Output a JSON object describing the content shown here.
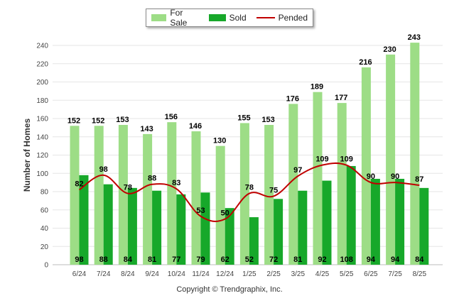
{
  "chart_data": {
    "type": "bar",
    "categories": [
      "6/24",
      "7/24",
      "8/24",
      "9/24",
      "10/24",
      "11/24",
      "12/24",
      "1/25",
      "2/25",
      "3/25",
      "4/25",
      "5/25",
      "6/25",
      "7/25",
      "8/25"
    ],
    "series": [
      {
        "name": "For Sale",
        "kind": "bar",
        "color": "#9ddd86",
        "values": [
          152,
          152,
          153,
          143,
          156,
          146,
          130,
          155,
          153,
          176,
          189,
          177,
          216,
          230,
          243
        ]
      },
      {
        "name": "Sold",
        "kind": "bar",
        "color": "#17a82a",
        "values": [
          98,
          88,
          84,
          81,
          77,
          79,
          62,
          52,
          72,
          81,
          92,
          108,
          94,
          94,
          84
        ]
      },
      {
        "name": "Pended",
        "kind": "line",
        "color": "#c00000",
        "values": [
          82,
          98,
          78,
          88,
          83,
          53,
          50,
          78,
          75,
          97,
          109,
          109,
          90,
          90,
          87
        ]
      }
    ],
    "ylabel": "Number of Homes",
    "ylim": [
      0,
      240
    ],
    "yticks": [
      0,
      20,
      40,
      60,
      80,
      100,
      120,
      140,
      160,
      180,
      200,
      220,
      240
    ],
    "grid": true,
    "legend_position": "top-center",
    "copyright": "Copyright © Trendgraphix, Inc."
  }
}
